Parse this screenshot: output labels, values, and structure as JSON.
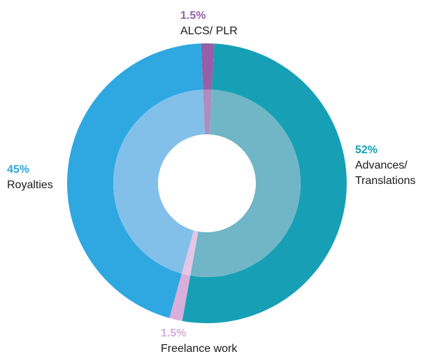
{
  "chart_data": {
    "type": "pie",
    "title": "",
    "slices": [
      {
        "label": "Advances/ Translations",
        "label_lines": [
          "Advances/",
          "Translations"
        ],
        "value": 52,
        "value_label": "52%",
        "color": "#17a0b5",
        "inner_color": "#70b6c6"
      },
      {
        "label": "Freelance work",
        "label_lines": [
          "Freelance work"
        ],
        "value": 1.5,
        "value_label": "1.5%",
        "color": "#d9aedb",
        "inner_color": "#e4c6e6"
      },
      {
        "label": "Royalties",
        "label_lines": [
          "Royalties"
        ],
        "value": 45,
        "value_label": "45%",
        "color": "#2fa8e1",
        "inner_color": "#82c0ea"
      },
      {
        "label": "ALCS/ PLR",
        "label_lines": [
          "ALCS/ PLR"
        ],
        "value": 1.5,
        "value_label": "1.5%",
        "color": "#9560a8",
        "inner_color": "#b08cbf"
      }
    ]
  }
}
